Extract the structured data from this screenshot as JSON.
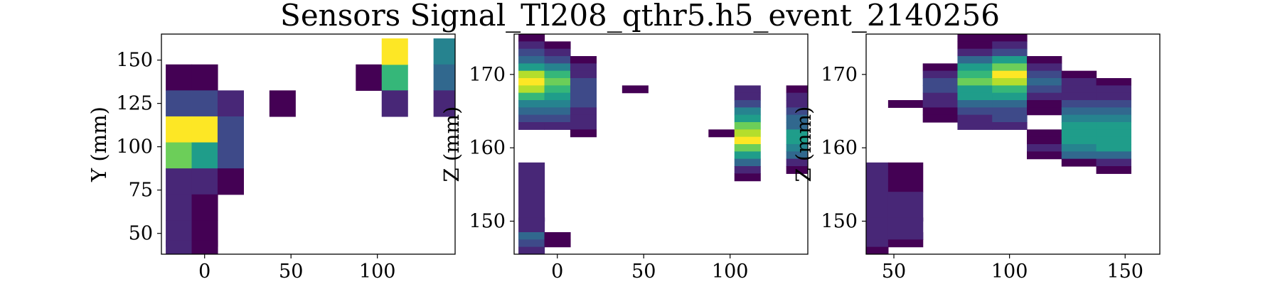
{
  "figure": {
    "title": "Sensors Signal_Tl208_qthr5.h5_event_2140256"
  },
  "colormap": [
    "#440154",
    "#482777",
    "#3e4a89",
    "#31688e",
    "#26838f",
    "#1f9d8a",
    "#35b779",
    "#6cce59",
    "#b4de2c",
    "#fde725"
  ],
  "chart_data": [
    {
      "type": "heatmap",
      "title": "",
      "xlabel": "",
      "ylabel": "Y (mm)",
      "xlim": [
        -25,
        145
      ],
      "ylim": [
        38,
        165
      ],
      "xticks": [
        0,
        50,
        100
      ],
      "yticks": [
        50,
        75,
        100,
        125,
        150
      ],
      "cells": [
        [
          -15,
          140,
          15,
          15,
          0.05
        ],
        [
          0,
          140,
          15,
          15,
          0.05
        ],
        [
          -15,
          125,
          15,
          15,
          0.25
        ],
        [
          0,
          125,
          15,
          15,
          0.2
        ],
        [
          15,
          125,
          15,
          15,
          0.08
        ],
        [
          -15,
          110,
          15,
          15,
          0.99
        ],
        [
          0,
          110,
          15,
          15,
          0.95
        ],
        [
          15,
          110,
          15,
          15,
          0.25
        ],
        [
          -15,
          95,
          15,
          15,
          0.75
        ],
        [
          0,
          95,
          15,
          15,
          0.6
        ],
        [
          15,
          95,
          15,
          15,
          0.18
        ],
        [
          -15,
          80,
          15,
          15,
          0.12
        ],
        [
          0,
          80,
          15,
          15,
          0.12
        ],
        [
          15,
          80,
          15,
          15,
          0.05
        ],
        [
          -15,
          65,
          15,
          15,
          0.1
        ],
        [
          0,
          65,
          15,
          15,
          0.04
        ],
        [
          -15,
          50,
          15,
          15,
          0.1
        ],
        [
          0,
          50,
          15,
          15,
          0.02
        ],
        [
          -15,
          42,
          15,
          8,
          0.14
        ],
        [
          0,
          42,
          15,
          8,
          0.02
        ],
        [
          45,
          125,
          15,
          15,
          0.02
        ],
        [
          95,
          140,
          15,
          15,
          0.03
        ],
        [
          110,
          140,
          15,
          15,
          0.72
        ],
        [
          110,
          155,
          15,
          15,
          0.95
        ],
        [
          110,
          125,
          15,
          15,
          0.1
        ],
        [
          140,
          155,
          15,
          15,
          0.4
        ],
        [
          140,
          140,
          15,
          15,
          0.34
        ],
        [
          140,
          125,
          15,
          15,
          0.06
        ]
      ]
    },
    {
      "type": "heatmap",
      "title": "",
      "xlabel": "",
      "ylabel": "Z (mm)",
      "xlim": [
        -25,
        145
      ],
      "ylim": [
        145.5,
        175.5
      ],
      "xticks": [
        0,
        50,
        100
      ],
      "yticks": [
        150,
        160,
        170
      ],
      "cells": [
        [
          -15,
          175,
          15,
          1,
          0.05
        ],
        [
          -15,
          174,
          15,
          1,
          0.1
        ],
        [
          -15,
          173,
          15,
          1,
          0.2
        ],
        [
          -15,
          172,
          15,
          1,
          0.35
        ],
        [
          -15,
          171,
          15,
          1,
          0.55
        ],
        [
          -15,
          170,
          15,
          1,
          0.85
        ],
        [
          -15,
          169,
          15,
          1,
          0.99
        ],
        [
          -15,
          168,
          15,
          1,
          0.85
        ],
        [
          -15,
          167,
          15,
          1,
          0.65
        ],
        [
          -15,
          166,
          15,
          1,
          0.45
        ],
        [
          -15,
          165,
          15,
          1,
          0.3
        ],
        [
          -15,
          164,
          15,
          1,
          0.2
        ],
        [
          -15,
          163,
          15,
          1,
          0.12
        ],
        [
          0,
          174,
          15,
          1,
          0.05
        ],
        [
          0,
          173,
          15,
          1,
          0.12
        ],
        [
          0,
          172,
          15,
          1,
          0.25
        ],
        [
          0,
          171,
          15,
          1,
          0.45
        ],
        [
          0,
          170,
          15,
          1,
          0.65
        ],
        [
          0,
          169,
          15,
          1,
          0.8
        ],
        [
          0,
          168,
          15,
          1,
          0.7
        ],
        [
          0,
          167,
          15,
          1,
          0.55
        ],
        [
          0,
          166,
          15,
          1,
          0.45
        ],
        [
          0,
          165,
          15,
          1,
          0.3
        ],
        [
          0,
          164,
          15,
          1,
          0.22
        ],
        [
          0,
          163,
          15,
          1,
          0.15
        ],
        [
          15,
          172,
          15,
          1,
          0.03
        ],
        [
          15,
          171,
          15,
          1,
          0.1
        ],
        [
          15,
          170,
          15,
          1,
          0.15
        ],
        [
          15,
          169,
          15,
          1,
          0.18
        ],
        [
          15,
          168,
          15,
          1,
          0.2
        ],
        [
          15,
          167,
          15,
          1,
          0.2
        ],
        [
          15,
          166,
          15,
          1,
          0.18
        ],
        [
          15,
          165,
          15,
          1,
          0.15
        ],
        [
          15,
          164,
          15,
          1,
          0.12
        ],
        [
          15,
          163,
          15,
          1,
          0.08
        ],
        [
          15,
          162,
          15,
          1,
          0.03
        ],
        [
          45,
          168,
          15,
          1,
          0.05
        ],
        [
          -15,
          156,
          15,
          4,
          0.08
        ],
        [
          -15,
          152,
          15,
          4,
          0.1
        ],
        [
          -15,
          149,
          15,
          3,
          0.12
        ],
        [
          -15,
          148,
          15,
          1,
          0.35
        ],
        [
          -15,
          147,
          15,
          1,
          0.25
        ],
        [
          -15,
          146,
          15,
          1,
          0.12
        ],
        [
          0,
          148,
          15,
          1,
          0.03
        ],
        [
          0,
          147,
          15,
          1,
          0.05
        ],
        [
          95,
          162,
          15,
          1,
          0.05
        ],
        [
          110,
          168,
          15,
          1,
          0.08
        ],
        [
          110,
          167,
          15,
          1,
          0.15
        ],
        [
          110,
          166,
          15,
          1,
          0.25
        ],
        [
          110,
          165,
          15,
          1,
          0.4
        ],
        [
          110,
          164,
          15,
          1,
          0.6
        ],
        [
          110,
          163,
          15,
          1,
          0.75
        ],
        [
          110,
          162,
          15,
          1,
          0.9
        ],
        [
          110,
          161,
          15,
          1,
          0.99
        ],
        [
          110,
          160,
          15,
          1,
          0.8
        ],
        [
          110,
          159,
          15,
          1,
          0.5
        ],
        [
          110,
          158,
          15,
          1,
          0.3
        ],
        [
          110,
          157,
          15,
          1,
          0.15
        ],
        [
          110,
          156,
          15,
          1,
          0.05
        ],
        [
          140,
          168,
          15,
          1,
          0.03
        ],
        [
          140,
          167,
          15,
          1,
          0.08
        ],
        [
          140,
          166,
          15,
          1,
          0.12
        ],
        [
          140,
          165,
          15,
          1,
          0.2
        ],
        [
          140,
          164,
          15,
          1,
          0.3
        ],
        [
          140,
          163,
          15,
          1,
          0.35
        ],
        [
          140,
          162,
          15,
          1,
          0.5
        ],
        [
          140,
          161,
          15,
          1,
          0.6
        ],
        [
          140,
          160,
          15,
          1,
          0.45
        ],
        [
          140,
          159,
          15,
          1,
          0.3
        ],
        [
          140,
          158,
          15,
          1,
          0.15
        ],
        [
          140,
          157,
          15,
          1,
          0.05
        ]
      ]
    },
    {
      "type": "heatmap",
      "title": "",
      "xlabel": "",
      "ylabel": "Z (mm)",
      "xlim": [
        38,
        165
      ],
      "ylim": [
        145.5,
        175.5
      ],
      "xticks": [
        50,
        100,
        150
      ],
      "yticks": [
        150,
        160,
        170
      ],
      "cells": [
        [
          40,
          156,
          15,
          4,
          0.06
        ],
        [
          40,
          152,
          15,
          4,
          0.08
        ],
        [
          40,
          149,
          15,
          3,
          0.12
        ],
        [
          40,
          148,
          15,
          1,
          0.1
        ],
        [
          40,
          147,
          15,
          1,
          0.06
        ],
        [
          40,
          146,
          15,
          1,
          0.03
        ],
        [
          55,
          156,
          15,
          4,
          0.05
        ],
        [
          55,
          152,
          15,
          4,
          0.06
        ],
        [
          55,
          149,
          15,
          3,
          0.1
        ],
        [
          55,
          148,
          15,
          1,
          0.08
        ],
        [
          55,
          147,
          15,
          1,
          0.05
        ],
        [
          55,
          166,
          15,
          1,
          0.03
        ],
        [
          70,
          171,
          15,
          1,
          0.03
        ],
        [
          70,
          170,
          15,
          1,
          0.15
        ],
        [
          70,
          169,
          15,
          1,
          0.2
        ],
        [
          70,
          168,
          15,
          1,
          0.18
        ],
        [
          70,
          167,
          15,
          1,
          0.12
        ],
        [
          70,
          166,
          15,
          1,
          0.08
        ],
        [
          70,
          165,
          15,
          1,
          0.05
        ],
        [
          70,
          164,
          15,
          1,
          0.03
        ],
        [
          85,
          175,
          15,
          1,
          0.02
        ],
        [
          85,
          174,
          15,
          1,
          0.05
        ],
        [
          85,
          173,
          15,
          1,
          0.15
        ],
        [
          85,
          172,
          15,
          1,
          0.3
        ],
        [
          85,
          171,
          15,
          1,
          0.5
        ],
        [
          85,
          170,
          15,
          1,
          0.7
        ],
        [
          85,
          169,
          15,
          1,
          0.75
        ],
        [
          85,
          168,
          15,
          1,
          0.6
        ],
        [
          85,
          167,
          15,
          1,
          0.5
        ],
        [
          85,
          166,
          15,
          1,
          0.35
        ],
        [
          85,
          165,
          15,
          1,
          0.25
        ],
        [
          85,
          164,
          15,
          1,
          0.15
        ],
        [
          85,
          163,
          15,
          1,
          0.08
        ],
        [
          100,
          175,
          15,
          1,
          0.03
        ],
        [
          100,
          174,
          15,
          1,
          0.08
        ],
        [
          100,
          173,
          15,
          1,
          0.25
        ],
        [
          100,
          172,
          15,
          1,
          0.5
        ],
        [
          100,
          171,
          15,
          1,
          0.8
        ],
        [
          100,
          170,
          15,
          1,
          0.99
        ],
        [
          100,
          169,
          15,
          1,
          0.9
        ],
        [
          100,
          168,
          15,
          1,
          0.7
        ],
        [
          100,
          167,
          15,
          1,
          0.5
        ],
        [
          100,
          166,
          15,
          1,
          0.35
        ],
        [
          100,
          165,
          15,
          1,
          0.25
        ],
        [
          100,
          164,
          15,
          1,
          0.2
        ],
        [
          100,
          163,
          15,
          1,
          0.15
        ],
        [
          115,
          172,
          15,
          1,
          0.05
        ],
        [
          115,
          171,
          15,
          1,
          0.1
        ],
        [
          115,
          170,
          15,
          1,
          0.2
        ],
        [
          115,
          169,
          15,
          1,
          0.3
        ],
        [
          115,
          168,
          15,
          1,
          0.25
        ],
        [
          115,
          167,
          15,
          1,
          0.12
        ],
        [
          115,
          166,
          15,
          1,
          0.05
        ],
        [
          115,
          165,
          15,
          1,
          0.03
        ],
        [
          115,
          162,
          15,
          1,
          0.03
        ],
        [
          115,
          161,
          15,
          1,
          0.05
        ],
        [
          115,
          160,
          15,
          1,
          0.08
        ],
        [
          115,
          159,
          15,
          1,
          0.05
        ],
        [
          130,
          170,
          15,
          1,
          0.02
        ],
        [
          130,
          169,
          15,
          1,
          0.08
        ],
        [
          130,
          168,
          15,
          1,
          0.12
        ],
        [
          130,
          167,
          15,
          1,
          0.15
        ],
        [
          130,
          166,
          15,
          1,
          0.2
        ],
        [
          130,
          165,
          15,
          1,
          0.3
        ],
        [
          130,
          164,
          15,
          1,
          0.4
        ],
        [
          130,
          163,
          15,
          1,
          0.5
        ],
        [
          130,
          162,
          15,
          1,
          0.55
        ],
        [
          130,
          161,
          15,
          1,
          0.5
        ],
        [
          130,
          160,
          15,
          1,
          0.4
        ],
        [
          130,
          159,
          15,
          1,
          0.3
        ],
        [
          130,
          158,
          15,
          1,
          0.05
        ],
        [
          145,
          169,
          15,
          1,
          0.05
        ],
        [
          145,
          168,
          15,
          1,
          0.1
        ],
        [
          145,
          167,
          15,
          1,
          0.15
        ],
        [
          145,
          166,
          15,
          1,
          0.25
        ],
        [
          145,
          165,
          15,
          1,
          0.35
        ],
        [
          145,
          164,
          15,
          1,
          0.45
        ],
        [
          145,
          163,
          15,
          1,
          0.55
        ],
        [
          145,
          162,
          15,
          1,
          0.6
        ],
        [
          145,
          161,
          15,
          1,
          0.6
        ],
        [
          145,
          160,
          15,
          1,
          0.5
        ],
        [
          145,
          159,
          15,
          1,
          0.3
        ],
        [
          145,
          158,
          15,
          1,
          0.15
        ],
        [
          145,
          157,
          15,
          1,
          0.05
        ]
      ]
    }
  ]
}
